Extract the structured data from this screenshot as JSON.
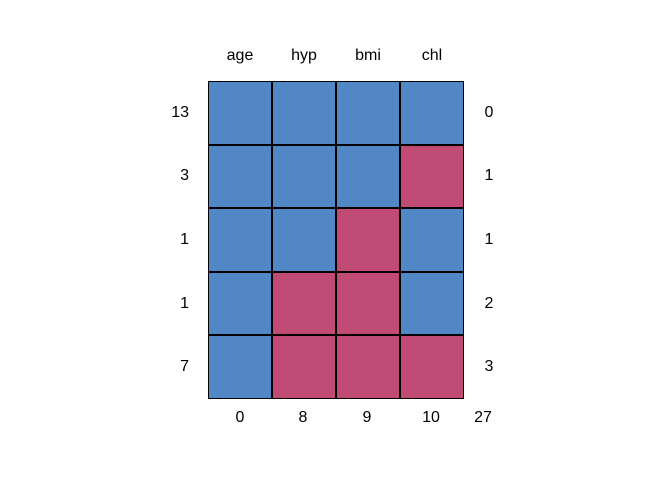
{
  "chart_data": {
    "type": "heatmap",
    "title": "",
    "columns": [
      "age",
      "hyp",
      "bmi",
      "chl"
    ],
    "rows": [
      {
        "pattern_count": "13",
        "cells": [
          1,
          1,
          1,
          1
        ],
        "missing_in_pattern": "0"
      },
      {
        "pattern_count": "3",
        "cells": [
          1,
          1,
          1,
          0
        ],
        "missing_in_pattern": "1"
      },
      {
        "pattern_count": "1",
        "cells": [
          1,
          1,
          0,
          1
        ],
        "missing_in_pattern": "1"
      },
      {
        "pattern_count": "1",
        "cells": [
          1,
          0,
          0,
          1
        ],
        "missing_in_pattern": "2"
      },
      {
        "pattern_count": "7",
        "cells": [
          1,
          0,
          0,
          0
        ],
        "missing_in_pattern": "3"
      }
    ],
    "column_missing_counts": [
      "0",
      "8",
      "9",
      "10"
    ],
    "total_missing": "27",
    "colors": {
      "observed": "#5287C6",
      "missing": "#C04B74",
      "cell_border": "#000000",
      "text": "#000000",
      "background": "#FFFFFF"
    },
    "legend_position": "none",
    "grid": "cell-borders"
  }
}
